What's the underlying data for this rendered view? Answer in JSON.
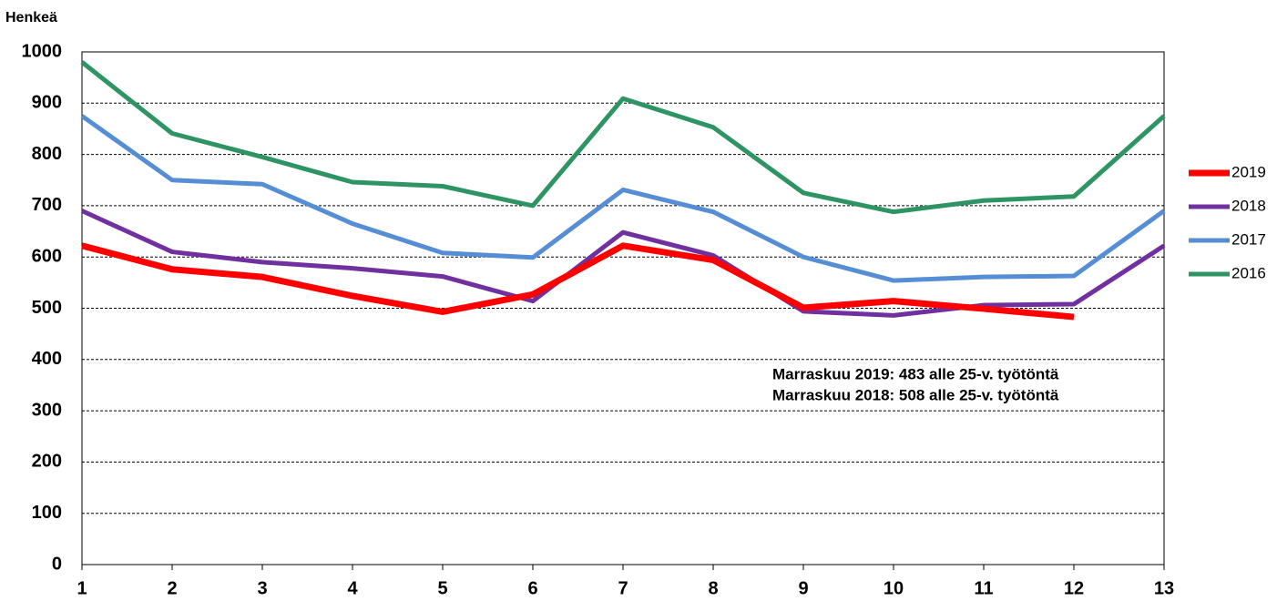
{
  "chart_data": {
    "type": "line",
    "y_label": "Henkeä",
    "x": [
      1,
      2,
      3,
      4,
      5,
      6,
      7,
      8,
      9,
      10,
      11,
      12,
      13
    ],
    "xlim": [
      1,
      13
    ],
    "xticks": [
      1,
      2,
      3,
      4,
      5,
      6,
      7,
      8,
      9,
      10,
      11,
      12,
      13
    ],
    "ylim": [
      0,
      1000
    ],
    "yticks": [
      0,
      100,
      200,
      300,
      400,
      500,
      600,
      700,
      800,
      900,
      1000
    ],
    "grid": true,
    "legend": "right",
    "series": [
      {
        "name": "2019",
        "color": "#ff0000",
        "values": [
          622,
          576,
          561,
          524,
          493,
          527,
          622,
          594,
          501,
          514,
          499,
          483,
          null
        ]
      },
      {
        "name": "2018",
        "color": "#7030a0",
        "values": [
          690,
          610,
          590,
          578,
          562,
          514,
          648,
          603,
          494,
          486,
          506,
          508,
          622
        ]
      },
      {
        "name": "2017",
        "color": "#558ed5",
        "values": [
          875,
          750,
          742,
          665,
          608,
          599,
          731,
          688,
          600,
          554,
          561,
          563,
          690
        ]
      },
      {
        "name": "2016",
        "color": "#2e9463",
        "values": [
          980,
          841,
          795,
          746,
          738,
          700,
          909,
          853,
          725,
          688,
          710,
          718,
          875
        ]
      }
    ],
    "annotations": [
      "Marraskuu 2019: 483 alle 25-v. työtöntä",
      "Marraskuu 2018: 508 alle 25-v. työtöntä"
    ]
  }
}
